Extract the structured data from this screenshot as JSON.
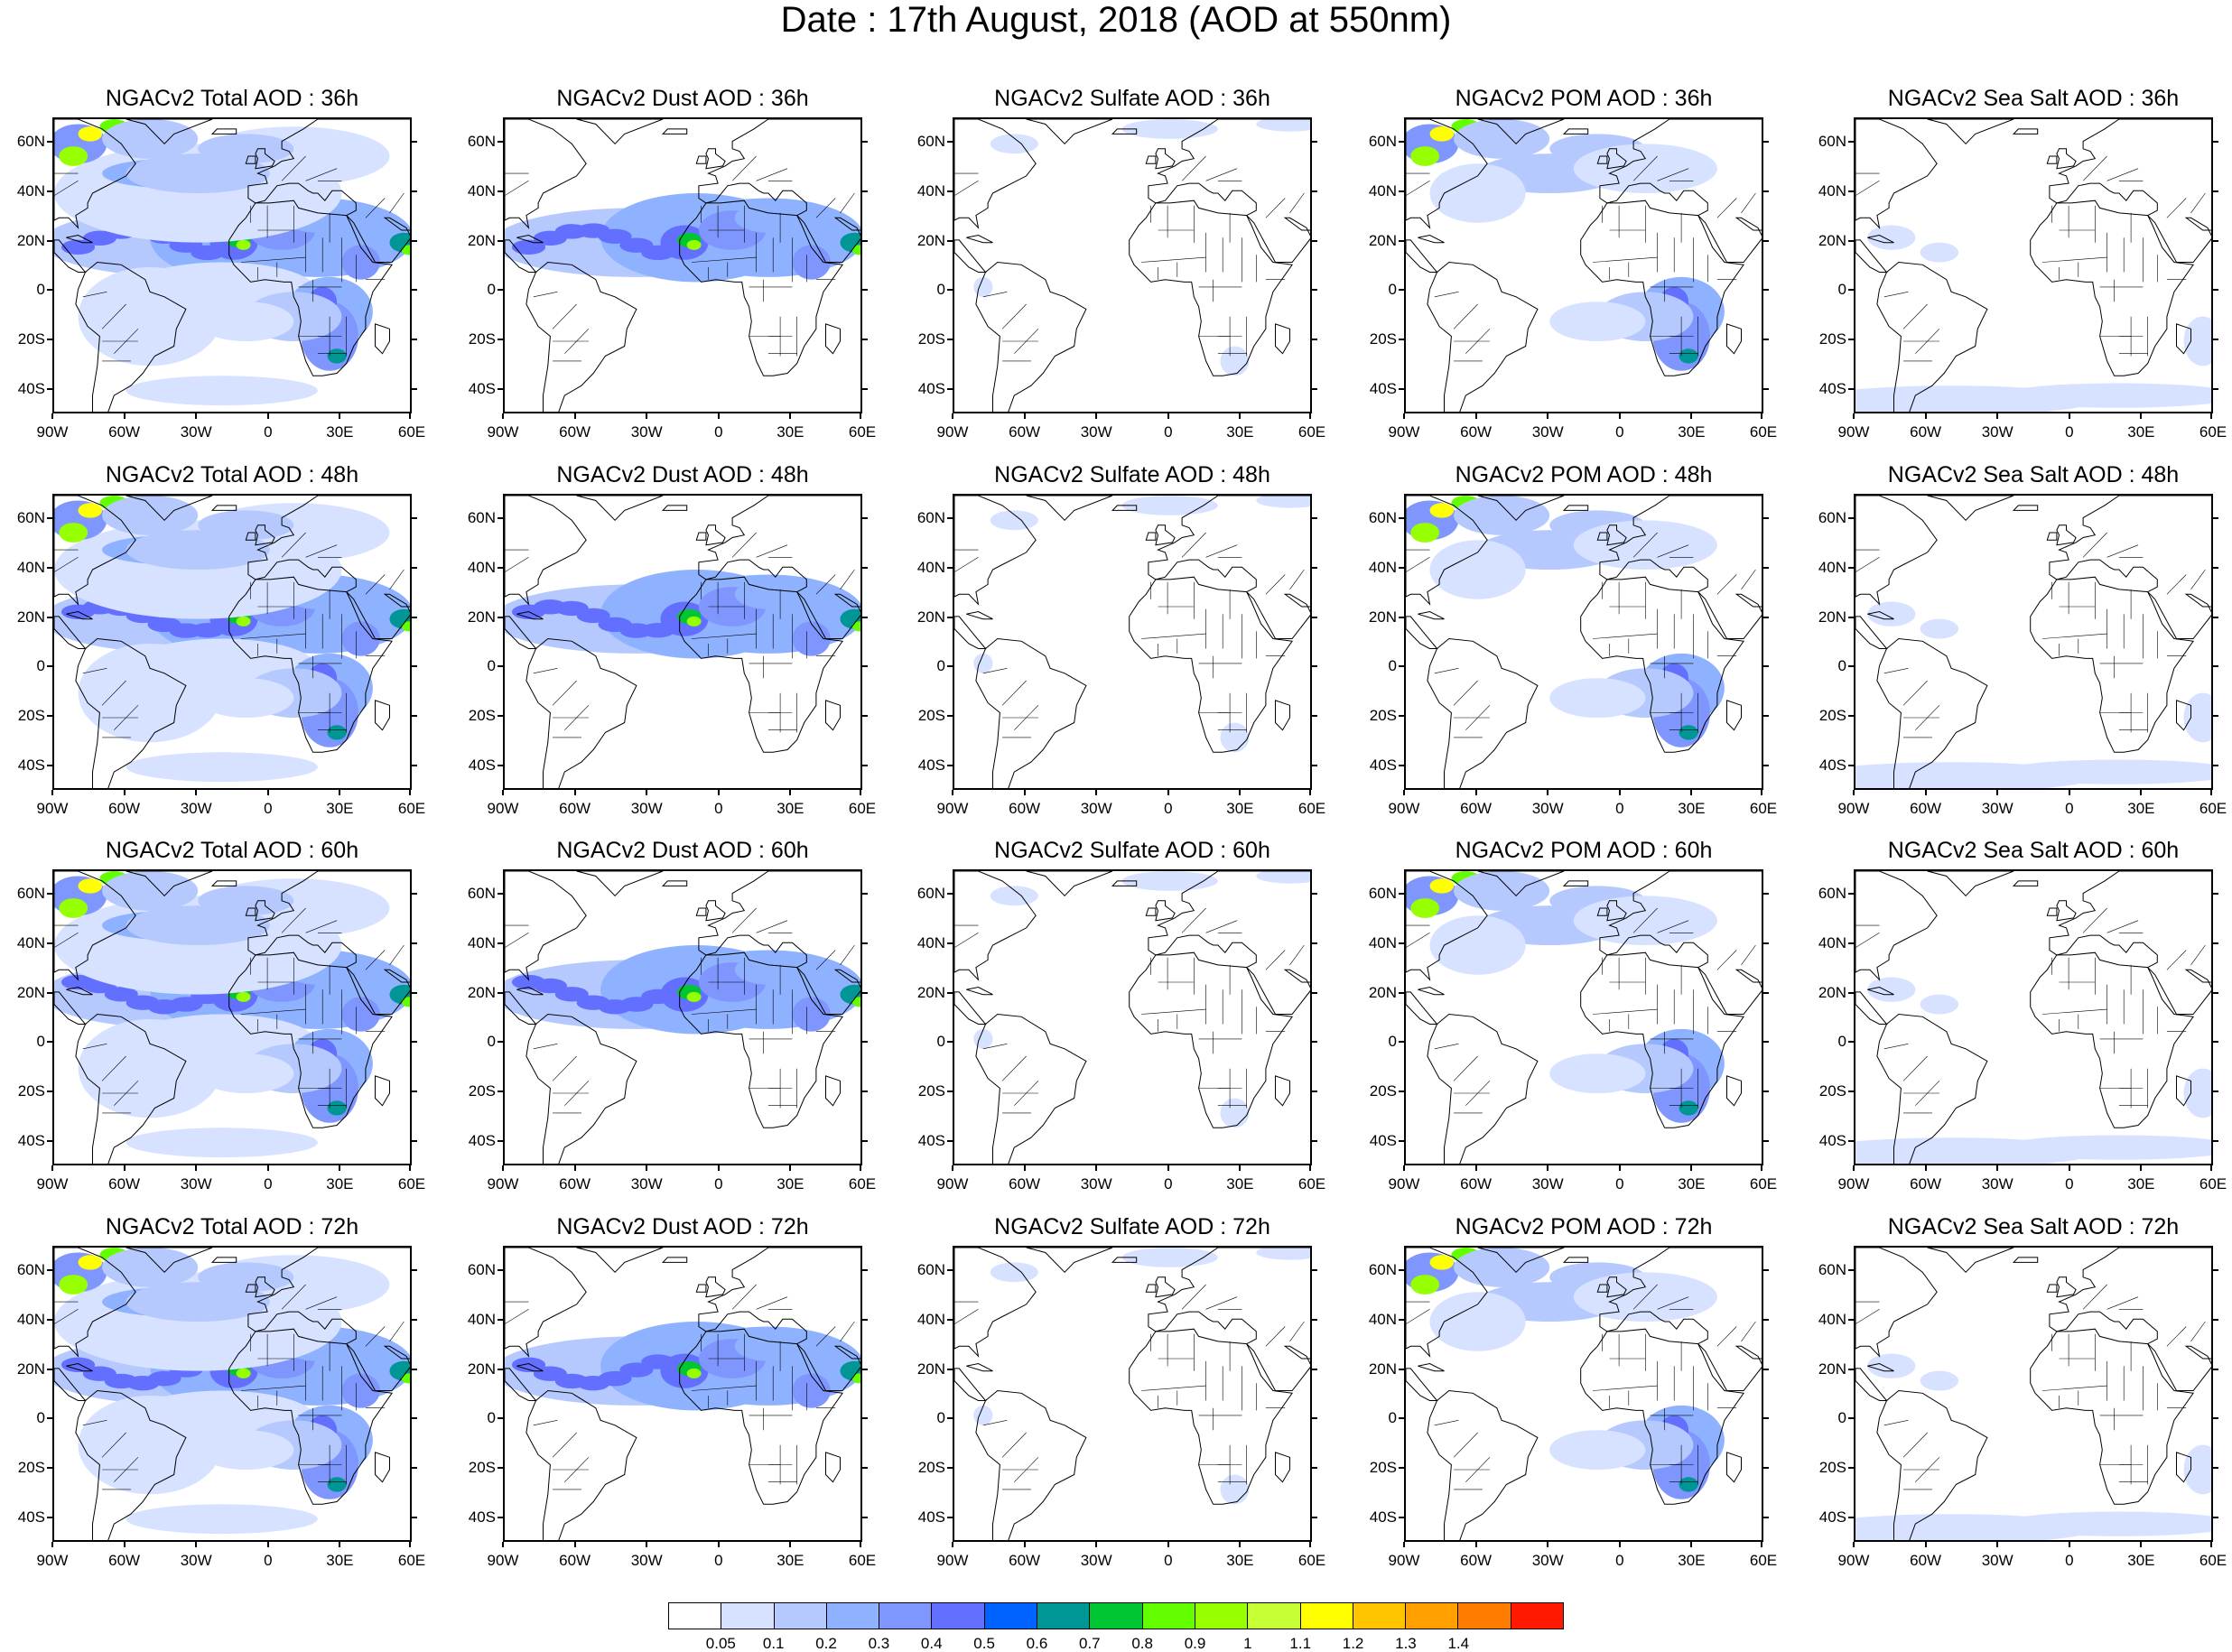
{
  "title": "Date : 17th August, 2018 (AOD at 550nm)",
  "panels": [
    {
      "title": "NGACv2 Total AOD : 36h",
      "type": "total"
    },
    {
      "title": "NGACv2 Dust AOD : 36h",
      "type": "dust"
    },
    {
      "title": "NGACv2 Sulfate AOD : 36h",
      "type": "sulfate"
    },
    {
      "title": "NGACv2 POM AOD : 36h",
      "type": "pom"
    },
    {
      "title": "NGACv2 Sea Salt AOD : 36h",
      "type": "seasalt"
    },
    {
      "title": "NGACv2 Total AOD : 48h",
      "type": "total"
    },
    {
      "title": "NGACv2 Dust AOD : 48h",
      "type": "dust"
    },
    {
      "title": "NGACv2 Sulfate AOD : 48h",
      "type": "sulfate"
    },
    {
      "title": "NGACv2 POM AOD : 48h",
      "type": "pom"
    },
    {
      "title": "NGACv2 Sea Salt AOD : 48h",
      "type": "seasalt"
    },
    {
      "title": "NGACv2 Total AOD : 60h",
      "type": "total"
    },
    {
      "title": "NGACv2 Dust AOD : 60h",
      "type": "dust"
    },
    {
      "title": "NGACv2 Sulfate AOD : 60h",
      "type": "sulfate"
    },
    {
      "title": "NGACv2 POM AOD : 60h",
      "type": "pom"
    },
    {
      "title": "NGACv2 Sea Salt AOD : 60h",
      "type": "seasalt"
    },
    {
      "title": "NGACv2 Total AOD : 72h",
      "type": "total"
    },
    {
      "title": "NGACv2 Dust AOD : 72h",
      "type": "dust"
    },
    {
      "title": "NGACv2 Sulfate AOD : 72h",
      "type": "sulfate"
    },
    {
      "title": "NGACv2 POM AOD : 72h",
      "type": "pom"
    },
    {
      "title": "NGACv2 Sea Salt  AOD : 72h",
      "type": "seasalt"
    }
  ],
  "axes": {
    "lat_labels": [
      "60N",
      "40N",
      "20N",
      "0",
      "20S",
      "40S"
    ],
    "lon_labels": [
      "90W",
      "60W",
      "30W",
      "0",
      "30E",
      "60E"
    ],
    "lat_range": [
      -50,
      70
    ],
    "lon_range": [
      -90,
      60
    ]
  },
  "colorbar": {
    "labels": [
      "0.05",
      "0.1",
      "0.2",
      "0.3",
      "0.4",
      "0.5",
      "0.6",
      "0.7",
      "0.8",
      "0.9",
      "1",
      "1.1",
      "1.2",
      "1.3",
      "1.4"
    ],
    "colors": [
      "#ffffff",
      "#d6e2ff",
      "#b5c9ff",
      "#8eb2ff",
      "#7f96ff",
      "#6370ff",
      "#0063ff",
      "#009696",
      "#00c633",
      "#63ff00",
      "#96ff00",
      "#c6ff33",
      "#ffff00",
      "#ffc600",
      "#ffa000",
      "#ff7c00",
      "#ff1900"
    ]
  },
  "colors": {
    "coast": "#000000",
    "background": "#ffffff"
  }
}
